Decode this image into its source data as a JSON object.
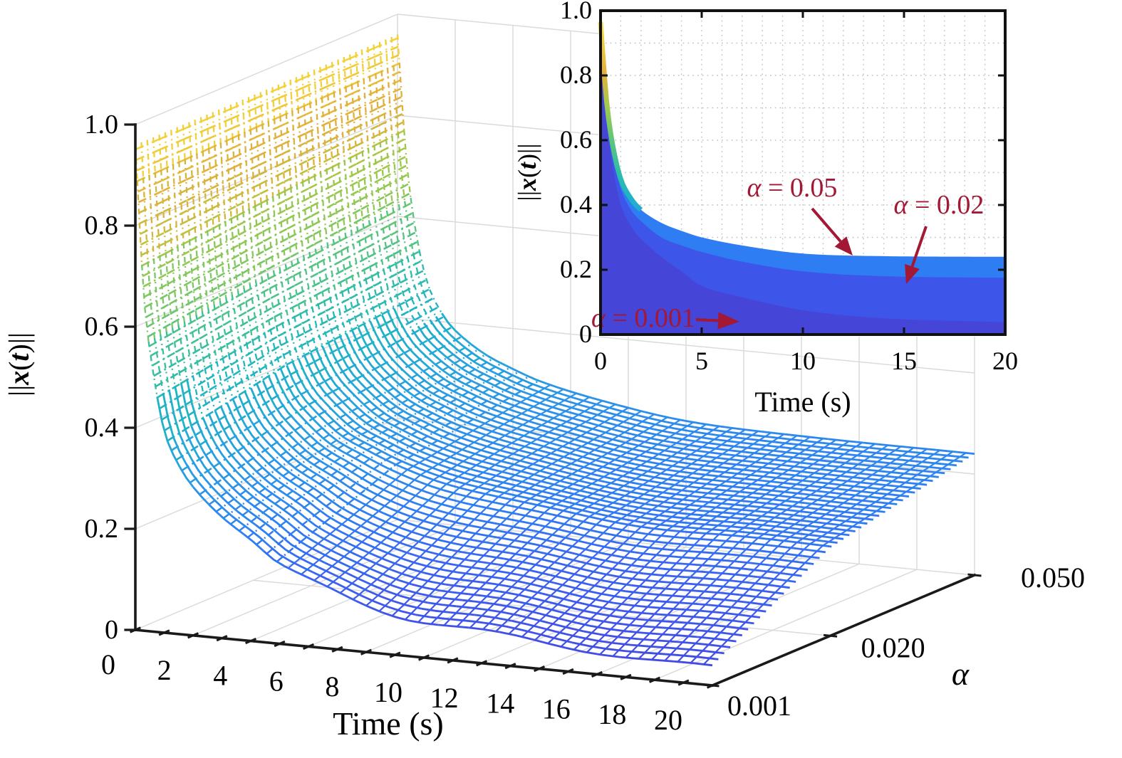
{
  "figure": {
    "background": "#ffffff",
    "description": "3D waterfall plot of ||x(t)|| versus Time and alpha, with 2D inset of stacked decay curves"
  },
  "colors": {
    "axis": "#1a1a1a",
    "grid3d": "#d9d9d9",
    "inset_grid": "#c3c3c3",
    "annotation_red": "#A21835",
    "band_a050": "#2F7DF2",
    "band_a020": "#3D55E9",
    "band_a001": "#4545D8",
    "white_mesh": "#ffffff"
  },
  "main_axes": {
    "xlabel": "Time (s)",
    "ylabel": "α",
    "zlabel": "||x(t)||",
    "x_tick_labels": [
      "0",
      "2",
      "4",
      "6",
      "8",
      "10",
      "12",
      "14",
      "16",
      "18",
      "20"
    ],
    "y_tick_labels": [
      "0.001",
      "0.020",
      "0.050"
    ],
    "z_tick_labels": [
      "0",
      "0.2",
      "0.4",
      "0.6",
      "0.8",
      "1.0"
    ]
  },
  "inset_axes": {
    "xlabel": "Time (s)",
    "ylabel": "||x(t)||",
    "x_tick_labels": [
      "0",
      "5",
      "10",
      "15",
      "20"
    ],
    "y_tick_labels": [
      "0",
      "0.2",
      "0.4",
      "0.6",
      "0.8",
      "1.0"
    ]
  },
  "chart_data": [
    {
      "type": "surface-waterfall",
      "title": "",
      "xlabel": "Time (s)",
      "ylabel": "α",
      "zlabel": "||x(t)||",
      "x_range": [
        0,
        20
      ],
      "alpha_range": [
        0.001,
        0.05
      ],
      "z_range": [
        0,
        1
      ],
      "x_ticks": [
        0,
        2,
        4,
        6,
        8,
        10,
        12,
        14,
        16,
        18,
        20
      ],
      "alpha_ticks": [
        0.001,
        0.02,
        0.05
      ],
      "z_ticks": [
        0,
        0.2,
        0.4,
        0.6,
        0.8,
        1.0
      ],
      "n_slices": 45,
      "t_samples": [
        0,
        0.3,
        0.6,
        1,
        1.5,
        2,
        3,
        4,
        5,
        7,
        10,
        14,
        20
      ],
      "series": [
        {
          "alpha": 0.001,
          "values": [
            0.96,
            0.66,
            0.52,
            0.4,
            0.335,
            0.295,
            0.24,
            0.195,
            0.15,
            0.115,
            0.075,
            0.05,
            0.038
          ]
        },
        {
          "alpha": 0.02,
          "values": [
            0.96,
            0.69,
            0.555,
            0.45,
            0.385,
            0.35,
            0.3,
            0.275,
            0.255,
            0.225,
            0.195,
            0.18,
            0.175
          ]
        },
        {
          "alpha": 0.05,
          "values": [
            0.96,
            0.72,
            0.585,
            0.48,
            0.42,
            0.385,
            0.345,
            0.32,
            0.3,
            0.275,
            0.25,
            0.242,
            0.24
          ]
        }
      ],
      "colormap": [
        [
          0.0,
          "#4742D8"
        ],
        [
          0.06,
          "#4150E8"
        ],
        [
          0.13,
          "#3A62F1"
        ],
        [
          0.2,
          "#2F7DF3"
        ],
        [
          0.28,
          "#2B93EA"
        ],
        [
          0.36,
          "#24A7D9"
        ],
        [
          0.44,
          "#1FB5C1"
        ],
        [
          0.52,
          "#34BF9F"
        ],
        [
          0.6,
          "#62C579"
        ],
        [
          0.68,
          "#90C854"
        ],
        [
          0.76,
          "#BAC53E"
        ],
        [
          0.84,
          "#E0AF3C"
        ],
        [
          0.92,
          "#EFC839"
        ],
        [
          1.0,
          "#F7E53D"
        ]
      ],
      "legend": "none",
      "grid": true
    },
    {
      "type": "area",
      "title": "",
      "xlabel": "Time (s)",
      "ylabel": "||x(t)||",
      "x_range": [
        0,
        20
      ],
      "y_range": [
        0,
        1
      ],
      "x_ticks": [
        0,
        5,
        10,
        15,
        20
      ],
      "y_ticks": [
        0,
        0.2,
        0.4,
        0.6,
        0.8,
        1.0
      ],
      "x": [
        0,
        0.3,
        0.6,
        1,
        1.5,
        2,
        3,
        4,
        5,
        7,
        10,
        14,
        20
      ],
      "series": [
        {
          "name": "α = 0.05",
          "alpha": 0.05,
          "fill": "#2F7DF2",
          "values": [
            0.96,
            0.72,
            0.585,
            0.48,
            0.42,
            0.385,
            0.345,
            0.32,
            0.3,
            0.275,
            0.25,
            0.242,
            0.24
          ]
        },
        {
          "name": "α = 0.02",
          "alpha": 0.02,
          "fill": "#3D55E9",
          "values": [
            0.96,
            0.69,
            0.555,
            0.45,
            0.385,
            0.35,
            0.3,
            0.275,
            0.255,
            0.225,
            0.195,
            0.18,
            0.175
          ]
        },
        {
          "name": "α = 0.001",
          "alpha": 0.001,
          "fill": "#4545D8",
          "values": [
            0.96,
            0.66,
            0.52,
            0.4,
            0.335,
            0.295,
            0.24,
            0.195,
            0.15,
            0.115,
            0.075,
            0.05,
            0.038
          ]
        }
      ],
      "annotations": [
        {
          "var": "α",
          "rest": " = 0.05",
          "target_value": 0.24,
          "color": "#A21835"
        },
        {
          "var": "α",
          "rest": " = 0.02",
          "target_value": 0.175,
          "color": "#A21835"
        },
        {
          "var": "α",
          "rest": " = 0.001",
          "target_value": 0.05,
          "color": "#A21835"
        }
      ],
      "grid": "dotted",
      "legend": "none"
    }
  ]
}
